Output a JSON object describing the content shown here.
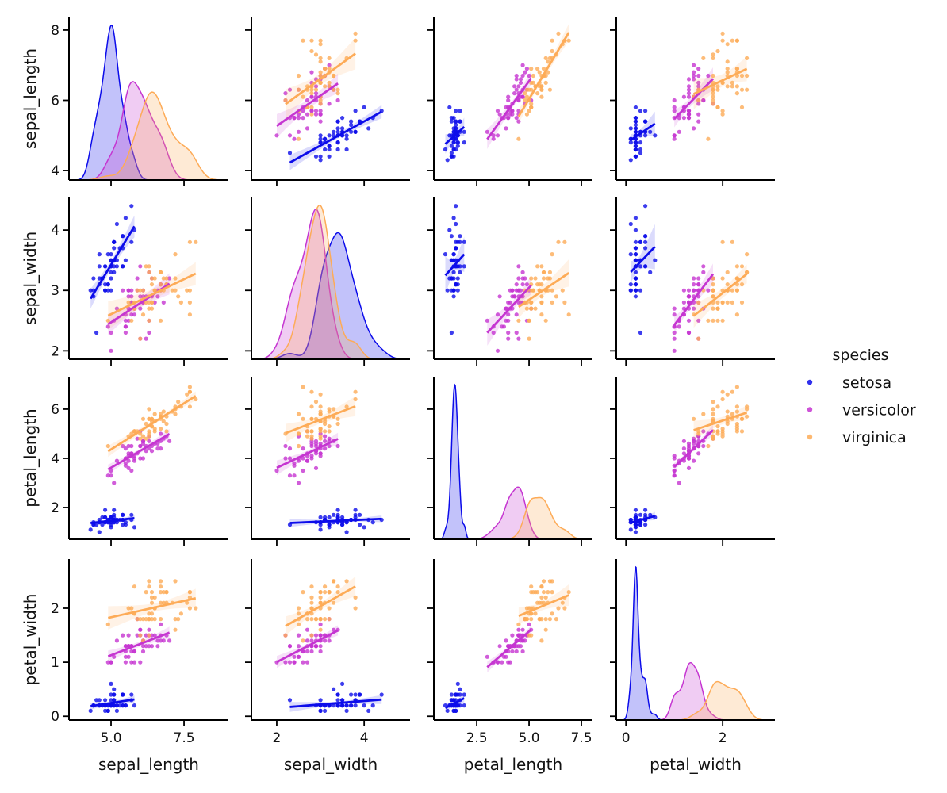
{
  "chart_data": {
    "type": "pairplot",
    "variables": [
      "sepal_length",
      "sepal_width",
      "petal_length",
      "petal_width"
    ],
    "legend_title": "species",
    "legend": "right",
    "axes": {
      "sepal_length": {
        "xlim": [
          3.56,
          9.02
        ],
        "xticks": [
          {
            "value": 5,
            "label": "5.0"
          },
          7.5
        ],
        "ylim": [
          3.73,
          8.36
        ],
        "yticks": [
          4,
          6,
          8
        ]
      },
      "sepal_width": {
        "xlim": [
          1.42,
          5.05
        ],
        "xticks": [
          2,
          4
        ],
        "ylim": [
          1.86,
          4.54
        ],
        "yticks": [
          2,
          3,
          4
        ]
      },
      "petal_length": {
        "xlim": [
          0.45,
          8.03
        ],
        "xticks": [
          2.5,
          {
            "value": 5,
            "label": "5.0"
          },
          7.5
        ],
        "ylim": [
          0.71,
          7.32
        ],
        "yticks": [
          2,
          4,
          6
        ]
      },
      "petal_width": {
        "xlim": [
          -0.2,
          3.08
        ],
        "xticks": [
          0,
          2
        ],
        "ylim": [
          -0.07,
          2.91
        ],
        "yticks": [
          0,
          1,
          2
        ]
      }
    },
    "series": [
      {
        "name": "setosa",
        "color": "#0c0cea",
        "values": {
          "sepal_length": [
            5.1,
            4.9,
            4.7,
            4.6,
            5.0,
            5.4,
            4.6,
            5.0,
            4.4,
            4.9,
            5.4,
            4.8,
            4.8,
            4.3,
            5.8,
            5.7,
            5.4,
            5.1,
            5.7,
            5.1,
            5.4,
            5.1,
            4.6,
            5.1,
            4.8,
            5.0,
            5.0,
            5.2,
            5.2,
            4.7,
            4.8,
            5.4,
            5.2,
            5.5,
            4.9,
            5.0,
            5.5,
            4.9,
            4.4,
            5.1,
            5.0,
            4.5,
            4.4,
            5.0,
            5.1,
            4.8,
            5.1,
            4.6,
            5.3,
            5.0
          ],
          "sepal_width": [
            3.5,
            3.0,
            3.2,
            3.1,
            3.6,
            3.9,
            3.4,
            3.4,
            2.9,
            3.1,
            3.7,
            3.4,
            3.0,
            3.0,
            4.0,
            4.4,
            3.9,
            3.5,
            3.8,
            3.8,
            3.4,
            3.7,
            3.6,
            3.3,
            3.4,
            3.0,
            3.4,
            3.5,
            3.4,
            3.2,
            3.1,
            3.4,
            4.1,
            4.2,
            3.1,
            3.2,
            3.5,
            3.6,
            3.0,
            3.4,
            3.5,
            2.3,
            3.2,
            3.5,
            3.8,
            3.0,
            3.8,
            3.2,
            3.7,
            3.3
          ],
          "petal_length": [
            1.4,
            1.4,
            1.3,
            1.5,
            1.4,
            1.7,
            1.4,
            1.5,
            1.4,
            1.5,
            1.5,
            1.6,
            1.4,
            1.1,
            1.2,
            1.5,
            1.3,
            1.4,
            1.7,
            1.5,
            1.7,
            1.5,
            1.0,
            1.7,
            1.9,
            1.6,
            1.6,
            1.5,
            1.4,
            1.6,
            1.6,
            1.5,
            1.5,
            1.4,
            1.5,
            1.2,
            1.3,
            1.4,
            1.3,
            1.5,
            1.3,
            1.3,
            1.3,
            1.6,
            1.9,
            1.4,
            1.6,
            1.4,
            1.5,
            1.4
          ],
          "petal_width": [
            0.2,
            0.2,
            0.2,
            0.2,
            0.2,
            0.4,
            0.3,
            0.2,
            0.2,
            0.1,
            0.2,
            0.2,
            0.1,
            0.1,
            0.2,
            0.4,
            0.4,
            0.3,
            0.3,
            0.3,
            0.2,
            0.4,
            0.2,
            0.5,
            0.2,
            0.2,
            0.4,
            0.2,
            0.2,
            0.2,
            0.2,
            0.4,
            0.1,
            0.2,
            0.2,
            0.2,
            0.2,
            0.1,
            0.2,
            0.2,
            0.3,
            0.3,
            0.2,
            0.6,
            0.4,
            0.3,
            0.2,
            0.2,
            0.2,
            0.2
          ]
        }
      },
      {
        "name": "versicolor",
        "color": "#c535d1",
        "values": {
          "sepal_length": [
            7.0,
            6.4,
            6.9,
            5.5,
            6.5,
            5.7,
            6.3,
            4.9,
            6.6,
            5.2,
            5.0,
            5.9,
            6.0,
            6.1,
            5.6,
            6.7,
            5.6,
            5.8,
            6.2,
            5.6,
            5.9,
            6.1,
            6.3,
            6.1,
            6.4,
            6.6,
            6.8,
            6.7,
            6.0,
            5.7,
            5.5,
            5.5,
            5.8,
            6.0,
            5.4,
            6.0,
            6.7,
            6.3,
            5.6,
            5.5,
            5.5,
            6.1,
            5.8,
            5.0,
            5.6,
            5.7,
            5.7,
            6.2,
            5.1,
            5.7
          ],
          "sepal_width": [
            3.2,
            3.2,
            3.1,
            2.3,
            2.8,
            2.8,
            3.3,
            2.4,
            2.9,
            2.7,
            2.0,
            3.0,
            2.2,
            2.9,
            2.9,
            3.1,
            3.0,
            2.7,
            2.2,
            2.5,
            3.2,
            2.8,
            2.5,
            2.8,
            2.9,
            3.0,
            2.8,
            3.0,
            2.9,
            2.6,
            2.4,
            2.4,
            2.7,
            2.7,
            3.0,
            3.4,
            3.1,
            2.3,
            3.0,
            2.5,
            2.6,
            3.0,
            2.6,
            2.3,
            2.7,
            3.0,
            2.9,
            2.9,
            2.5,
            2.8
          ],
          "petal_length": [
            4.7,
            4.5,
            4.9,
            4.0,
            4.6,
            4.5,
            4.7,
            3.3,
            4.6,
            3.9,
            3.5,
            4.2,
            4.0,
            4.7,
            3.6,
            4.4,
            4.5,
            4.1,
            4.5,
            3.9,
            4.8,
            4.0,
            4.9,
            4.7,
            4.3,
            4.4,
            4.8,
            5.0,
            4.5,
            3.5,
            3.8,
            3.7,
            3.9,
            5.1,
            4.5,
            4.5,
            4.7,
            4.4,
            4.1,
            4.0,
            4.4,
            4.6,
            4.0,
            3.3,
            4.2,
            4.2,
            4.2,
            4.3,
            3.0,
            4.1
          ],
          "petal_width": [
            1.4,
            1.5,
            1.5,
            1.3,
            1.5,
            1.3,
            1.6,
            1.0,
            1.3,
            1.4,
            1.0,
            1.5,
            1.0,
            1.4,
            1.3,
            1.4,
            1.5,
            1.0,
            1.5,
            1.1,
            1.8,
            1.3,
            1.5,
            1.2,
            1.3,
            1.4,
            1.4,
            1.7,
            1.5,
            1.0,
            1.1,
            1.0,
            1.2,
            1.6,
            1.5,
            1.6,
            1.5,
            1.3,
            1.3,
            1.3,
            1.2,
            1.4,
            1.2,
            1.0,
            1.3,
            1.2,
            1.3,
            1.3,
            1.1,
            1.3
          ]
        }
      },
      {
        "name": "virginica",
        "color": "#fdab57",
        "values": {
          "sepal_length": [
            6.3,
            5.8,
            7.1,
            6.3,
            6.5,
            7.6,
            4.9,
            7.3,
            6.7,
            7.2,
            6.5,
            6.4,
            6.8,
            5.7,
            5.8,
            6.4,
            6.5,
            7.7,
            7.7,
            6.0,
            6.9,
            5.6,
            7.7,
            6.3,
            6.7,
            7.2,
            6.2,
            6.1,
            6.4,
            7.2,
            7.4,
            7.9,
            6.4,
            6.3,
            6.1,
            7.7,
            6.3,
            6.4,
            6.0,
            6.9,
            6.7,
            6.9,
            5.8,
            6.8,
            6.7,
            6.7,
            6.3,
            6.5,
            6.2,
            5.9
          ],
          "sepal_width": [
            3.3,
            2.7,
            3.0,
            2.9,
            3.0,
            3.0,
            2.5,
            2.9,
            2.5,
            3.6,
            3.2,
            2.7,
            3.0,
            2.5,
            2.8,
            3.2,
            3.0,
            3.8,
            2.6,
            2.2,
            3.2,
            2.8,
            2.8,
            2.7,
            3.3,
            3.2,
            2.8,
            3.0,
            2.8,
            3.0,
            2.8,
            3.8,
            2.8,
            2.8,
            2.6,
            3.0,
            3.4,
            3.1,
            3.0,
            3.1,
            3.1,
            3.1,
            2.7,
            3.2,
            3.3,
            3.0,
            2.5,
            3.0,
            3.4,
            3.0
          ],
          "petal_length": [
            6.0,
            5.1,
            5.9,
            5.6,
            5.8,
            6.6,
            4.5,
            6.3,
            5.8,
            6.1,
            5.1,
            5.3,
            5.5,
            5.0,
            5.1,
            5.3,
            5.5,
            6.7,
            6.9,
            5.0,
            5.7,
            4.9,
            6.7,
            4.9,
            5.7,
            6.0,
            4.8,
            4.9,
            5.6,
            5.8,
            6.1,
            6.4,
            5.6,
            5.1,
            5.6,
            6.1,
            5.6,
            5.5,
            4.8,
            5.4,
            5.6,
            5.1,
            5.1,
            5.9,
            5.7,
            5.2,
            5.0,
            5.2,
            5.4,
            5.1
          ],
          "petal_width": [
            2.5,
            1.9,
            2.1,
            1.8,
            2.2,
            2.1,
            1.7,
            1.8,
            1.8,
            2.5,
            2.0,
            1.9,
            2.1,
            2.0,
            2.4,
            2.3,
            1.8,
            2.2,
            2.3,
            1.5,
            2.3,
            2.0,
            2.0,
            1.8,
            2.1,
            1.8,
            1.8,
            1.8,
            2.1,
            1.6,
            1.9,
            2.0,
            2.2,
            1.5,
            1.4,
            2.3,
            2.4,
            1.8,
            1.8,
            2.1,
            2.4,
            2.3,
            1.9,
            2.3,
            2.5,
            2.3,
            1.9,
            2.0,
            2.3,
            1.8
          ]
        }
      }
    ]
  }
}
